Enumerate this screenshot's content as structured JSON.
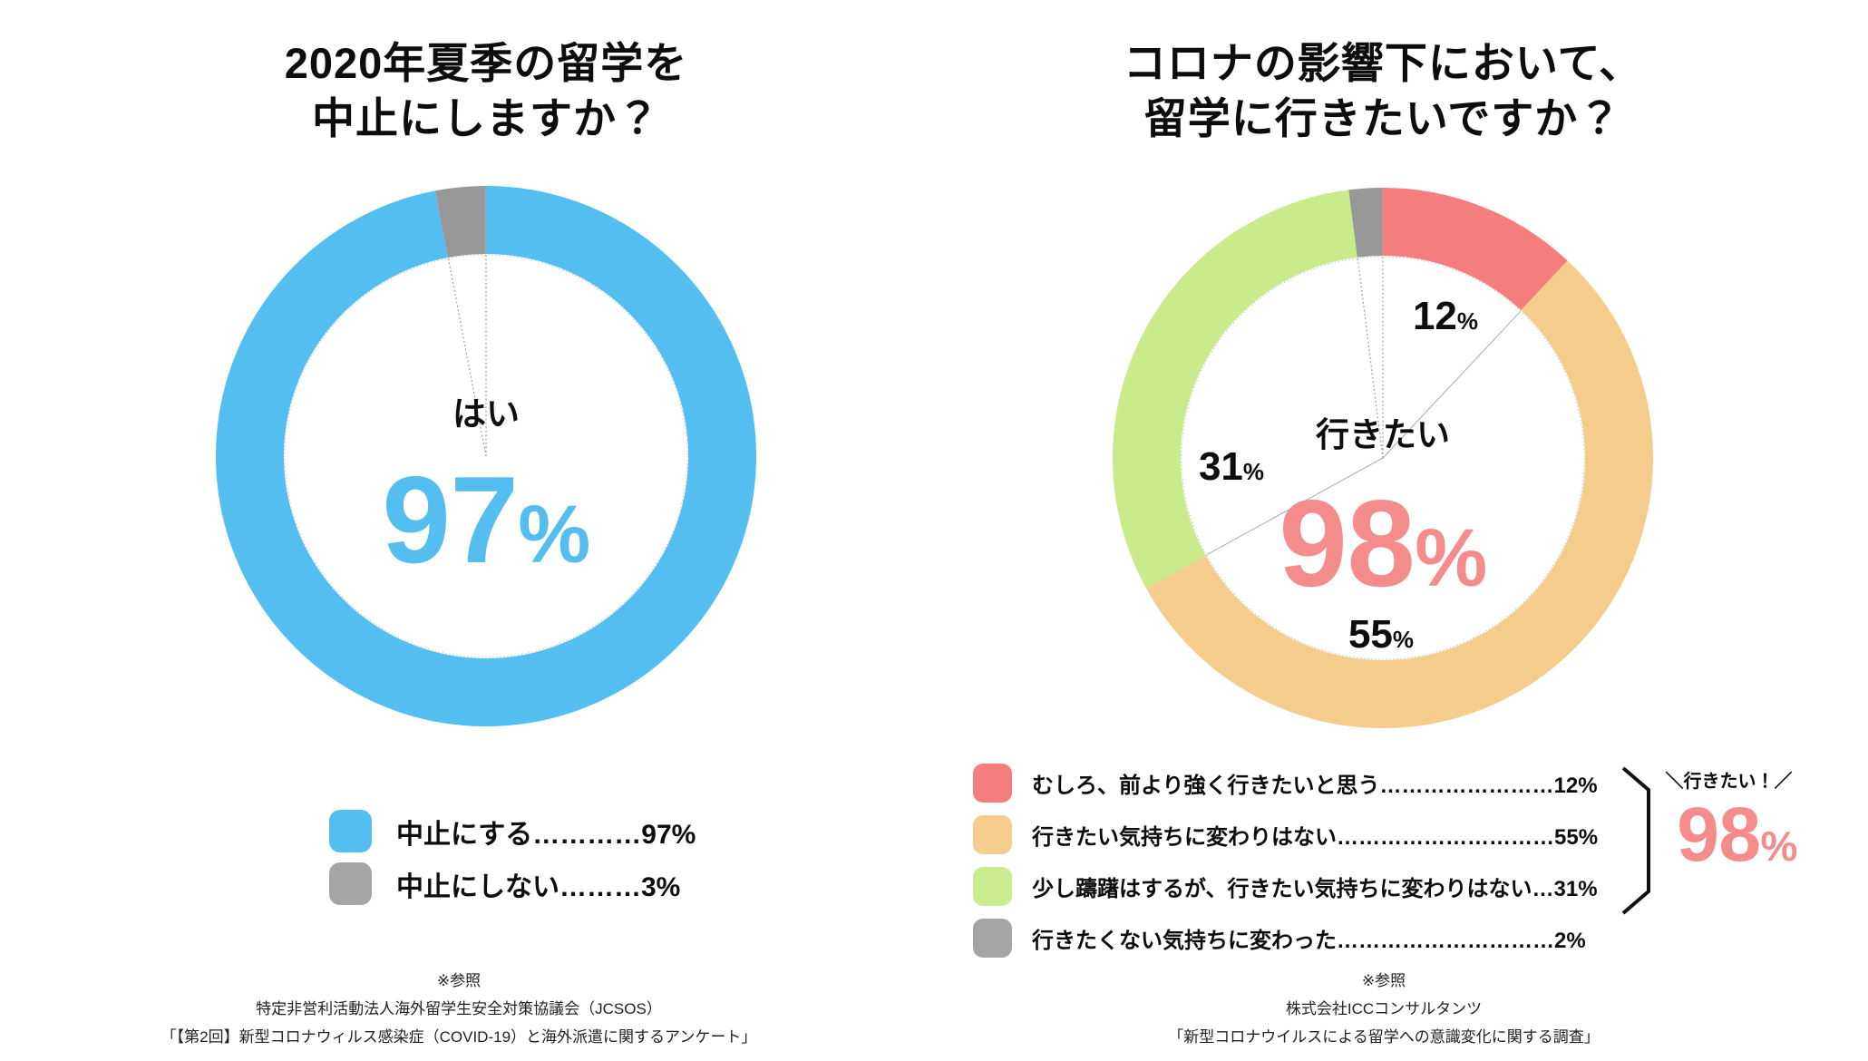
{
  "left": {
    "title_lines": [
      "2020年夏季の留学を",
      "中止にしますか？"
    ],
    "center": {
      "label": "はい",
      "value": "97",
      "unit": "%"
    },
    "legend": [
      {
        "label": "中止にする…………97%",
        "color": "#55BEF0"
      },
      {
        "label": "中止にしない………3%",
        "color": "#A5A5A5"
      }
    ],
    "footnote_lines": [
      "※参照",
      "特定非営利活動法人海外留学生安全対策協議会（JCSOS）",
      "「【第2回】新型コロナウィルス感染症（COVID-19）と海外派遣に関するアンケート」"
    ]
  },
  "right": {
    "title_lines": [
      "コロナの影響下において、",
      "留学に行きたいですか？"
    ],
    "center": {
      "label": "行きたい",
      "value": "98",
      "unit": "%"
    },
    "slice_labels": [
      {
        "value": "12",
        "unit": "%"
      },
      {
        "value": "31",
        "unit": "%"
      },
      {
        "value": "55",
        "unit": "%"
      }
    ],
    "legend": [
      {
        "label": "むしろ、前より強く行きたいと思う……………………12%",
        "color": "#F47E7E"
      },
      {
        "label": "行きたい気持ちに変わりはない…………………………55%",
        "color": "#F5CE8E"
      },
      {
        "label": "少し躊躇はするが、行きたい気持ちに変わりはない…31%",
        "color": "#CBEC8E"
      },
      {
        "label": "行きたくない気持ちに変わった…………………………2%",
        "color": "#A5A5A5"
      }
    ],
    "annotation": {
      "callout": "＼行きたい！／",
      "value": "98",
      "unit": "%"
    },
    "footnote_lines": [
      "※参照",
      "株式会社ICCコンサルタンツ",
      "「新型コロナウイルスによる留学への意識変化に関する調査」"
    ]
  },
  "chart_data": [
    {
      "type": "pie",
      "donut": true,
      "title": "2020年夏季の留学を中止にしますか？",
      "labels": [
        "中止にする",
        "中止にしない"
      ],
      "values": [
        97,
        3
      ],
      "colors": [
        "#55BEF0",
        "#989898"
      ],
      "center_label": "はい",
      "center_value_pct": 97,
      "start_angle": "top",
      "direction": "clockwise",
      "leader_lines": [
        {
          "at": 97,
          "style": "dotted"
        },
        {
          "at": 100,
          "style": "dotted"
        }
      ]
    },
    {
      "type": "pie",
      "donut": true,
      "title": "コロナの影響下において、留学に行きたいですか？",
      "labels": [
        "むしろ、前より強く行きたいと思う",
        "行きたい気持ちに変わりはない",
        "少し躊躇はするが、行きたい気持ちに変わりはない",
        "行きたくない気持ちに変わった"
      ],
      "values": [
        12,
        55,
        31,
        2
      ],
      "colors": [
        "#F47E7E",
        "#F4CD8C",
        "#C9EB8C",
        "#989898"
      ],
      "center_label": "行きたい",
      "center_value_pct": 98,
      "start_angle": "top",
      "direction": "clockwise",
      "leader_lines": [
        {
          "at": 12,
          "style": "solid"
        },
        {
          "at": 67,
          "style": "solid"
        },
        {
          "at": 98,
          "style": "dotted"
        },
        {
          "at": 100,
          "style": "dotted"
        }
      ]
    }
  ]
}
